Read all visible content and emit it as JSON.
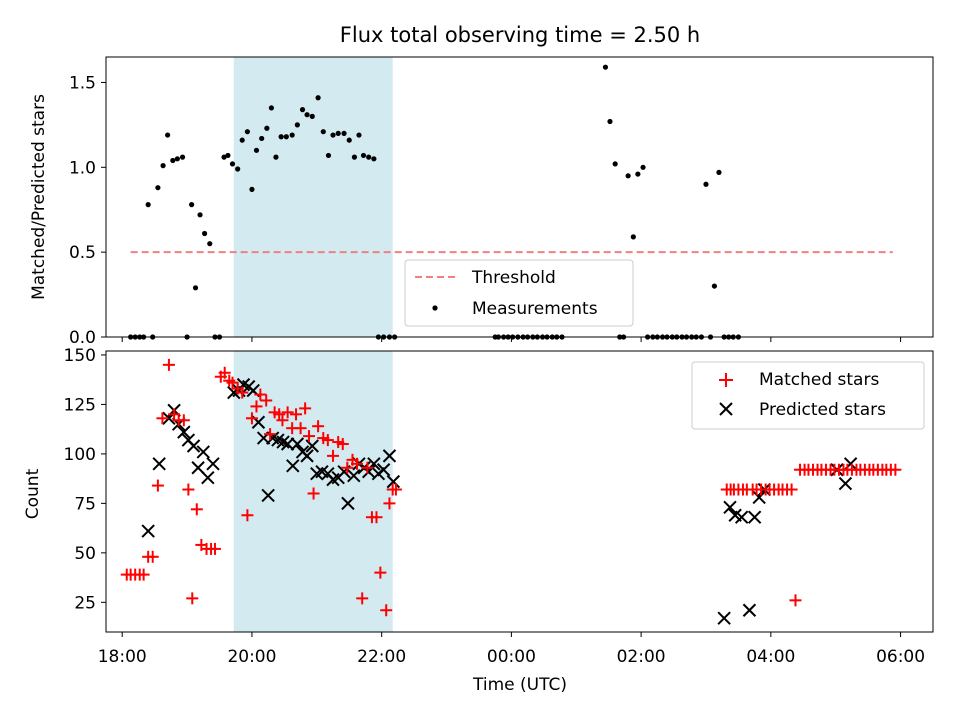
{
  "chart_data": [
    {
      "type": "scatter",
      "title": "Flux total observing time = 2.50 h",
      "xlabel": "",
      "ylabel": "Matched/Predicted stars",
      "ylim": [
        0,
        1.65
      ],
      "yticks": [
        0.0,
        0.5,
        1.0,
        1.5
      ],
      "ytick_labels": [
        "0.0",
        "0.5",
        "1.0",
        "1.5"
      ],
      "xlim_hours": [
        17.75,
        30.5
      ],
      "shaded_interval_hours": [
        19.72,
        22.17
      ],
      "shaded_color": "#d3eaf1",
      "threshold": {
        "name": "Threshold",
        "value": 0.5,
        "x_range_hours": [
          18.13,
          29.88
        ],
        "color": "#f08080",
        "style": "dashed"
      },
      "legend": {
        "position": "lower-center",
        "entries": [
          "Threshold",
          "Measurements"
        ]
      },
      "series": [
        {
          "name": "Measurements",
          "color": "#000000",
          "marker": "dot",
          "x_hours": [
            18.13,
            18.2,
            18.27,
            18.33,
            18.4,
            18.47,
            18.55,
            18.63,
            18.7,
            18.78,
            18.85,
            18.93,
            19.0,
            19.07,
            19.13,
            19.2,
            19.27,
            19.35,
            19.43,
            19.5,
            19.57,
            19.63,
            19.7,
            19.78,
            19.85,
            19.93,
            20.0,
            20.07,
            20.15,
            20.23,
            20.3,
            20.37,
            20.45,
            20.53,
            20.62,
            20.7,
            20.78,
            20.85,
            20.93,
            21.02,
            21.1,
            21.18,
            21.25,
            21.33,
            21.42,
            21.5,
            21.58,
            21.65,
            21.72,
            21.8,
            21.88,
            21.95,
            22.03,
            22.12,
            22.2,
            23.75,
            23.8,
            23.88,
            23.95,
            24.02,
            24.1,
            24.18,
            24.25,
            24.33,
            24.4,
            24.48,
            24.55,
            24.63,
            24.7,
            24.78,
            25.45,
            25.52,
            25.6,
            25.67,
            25.73,
            25.8,
            25.88,
            25.95,
            26.03,
            26.1,
            26.18,
            26.25,
            26.33,
            26.4,
            26.48,
            26.55,
            26.63,
            26.7,
            26.78,
            26.85,
            26.93,
            27.0,
            27.07,
            27.13,
            27.2,
            27.28,
            27.35,
            27.42,
            27.5
          ],
          "y": [
            0.0,
            0.0,
            0.0,
            0.0,
            0.78,
            0.0,
            0.88,
            1.01,
            1.19,
            1.04,
            1.05,
            1.06,
            0.0,
            0.78,
            0.29,
            0.72,
            0.61,
            0.55,
            0.0,
            0.0,
            1.06,
            1.07,
            1.02,
            0.99,
            1.16,
            1.21,
            0.87,
            1.1,
            1.17,
            1.23,
            1.35,
            1.06,
            1.18,
            1.18,
            1.19,
            1.25,
            1.34,
            1.31,
            1.3,
            1.41,
            1.21,
            1.07,
            1.19,
            1.2,
            1.2,
            1.16,
            1.06,
            1.19,
            1.07,
            1.06,
            1.05,
            0.0,
            0.0,
            0.0,
            0.0,
            0.0,
            0.0,
            0.0,
            0.0,
            0.0,
            0.0,
            0.0,
            0.0,
            0.0,
            0.0,
            0.0,
            0.0,
            0.0,
            0.0,
            0.0,
            1.59,
            1.27,
            1.02,
            0.0,
            0.0,
            0.95,
            0.59,
            0.96,
            1.0,
            0.0,
            0.0,
            0.0,
            0.0,
            0.0,
            0.0,
            0.0,
            0.0,
            0.0,
            0.0,
            0.0,
            0.0,
            0.9,
            0.0,
            0.3,
            0.97,
            0.0,
            0.0,
            0.0,
            0.0
          ]
        }
      ]
    },
    {
      "type": "scatter",
      "title": "",
      "xlabel": "Time (UTC)",
      "ylabel": "Count",
      "ylim": [
        10,
        152
      ],
      "yticks": [
        25,
        50,
        75,
        100,
        125,
        150
      ],
      "ytick_labels": [
        "25",
        "50",
        "75",
        "100",
        "125",
        "150"
      ],
      "xlim_hours": [
        17.75,
        30.5
      ],
      "xticks_hours": [
        18,
        20,
        22,
        24,
        26,
        28,
        30
      ],
      "xtick_labels": [
        "18:00",
        "20:00",
        "22:00",
        "00:00",
        "02:00",
        "04:00",
        "06:00"
      ],
      "shaded_interval_hours": [
        19.72,
        22.17
      ],
      "shaded_color": "#d3eaf1",
      "legend": {
        "position": "upper-right",
        "entries": [
          "Matched stars",
          "Predicted stars"
        ]
      },
      "series": [
        {
          "name": "Matched stars",
          "color": "#ff0000",
          "marker": "plus",
          "x_hours": [
            18.1,
            18.17,
            18.23,
            18.3,
            18.37,
            18.43,
            18.5,
            18.57,
            18.63,
            18.7,
            18.77,
            18.83,
            18.9,
            18.97,
            19.03,
            19.1,
            19.17,
            19.25,
            19.33,
            19.4,
            19.48,
            19.55,
            19.62,
            19.7,
            19.77,
            19.83,
            19.9,
            19.97,
            20.03,
            20.1,
            20.17,
            20.23,
            20.3,
            20.37,
            20.43,
            20.5,
            20.57,
            20.63,
            20.7,
            20.77,
            20.83,
            20.9,
            20.97,
            21.03,
            21.1,
            21.17,
            21.23,
            21.3,
            21.37,
            21.43,
            21.5,
            21.57,
            21.63,
            21.7,
            21.77,
            21.83,
            21.9,
            21.97,
            22.03,
            22.1,
            22.17,
            22.23,
            27.3,
            27.37,
            27.43,
            27.5,
            27.57,
            27.63,
            27.7,
            27.77,
            27.83,
            27.9,
            27.97,
            28.03,
            28.1,
            28.17,
            28.23,
            28.3,
            28.37,
            28.43,
            28.5,
            28.57,
            28.63,
            28.7,
            28.77,
            28.83,
            28.9,
            28.97,
            29.03,
            29.1,
            29.17,
            29.23,
            29.3,
            29.37,
            29.43,
            29.5,
            29.57,
            29.63,
            29.7,
            29.77,
            29.83,
            29.9
          ],
          "y": [
            39,
            39,
            39,
            39,
            39,
            48,
            48,
            84,
            115,
            145,
            118,
            117,
            117,
            82,
            27,
            72,
            54,
            52,
            52,
            52,
            139,
            141,
            137,
            136,
            133,
            131,
            69,
            118,
            124,
            130,
            127,
            110,
            121,
            120,
            117,
            121,
            113,
            120,
            113,
            123,
            109,
            80,
            114,
            108,
            107,
            99,
            106,
            105,
            93,
            97,
            95,
            96,
            27,
            93,
            68,
            68,
            40,
            21,
            75,
            82,
            82,
            82,
            82,
            82,
            82,
            82,
            82,
            82,
            82,
            82,
            82,
            82,
            82,
            82,
            82,
            82,
            82,
            26,
            92,
            92,
            92,
            92,
            92,
            92,
            92,
            92,
            92,
            92,
            92,
            92,
            92,
            92,
            92,
            92,
            92,
            92,
            92,
            92,
            92,
            92,
            92,
            92
          ],
          "render_x_hours": [
            18.07,
            18.13,
            18.2,
            18.27,
            18.33,
            18.4,
            18.47,
            18.55,
            18.62,
            18.72,
            18.8,
            18.87,
            18.95,
            19.02,
            19.08,
            19.15,
            19.22,
            19.3,
            19.37,
            19.43,
            19.52,
            19.58,
            19.65,
            19.7,
            19.78,
            19.85,
            19.93,
            20.0,
            20.07,
            20.13,
            20.22,
            20.28,
            20.35,
            20.42,
            20.47,
            20.55,
            20.62,
            20.68,
            20.75,
            20.82,
            20.88,
            20.95,
            21.02,
            21.1,
            21.17,
            21.25,
            21.33,
            21.4,
            21.47,
            21.55,
            21.62,
            21.7,
            21.78,
            21.85,
            21.92,
            21.98,
            22.07,
            22.12,
            22.17,
            22.22,
            27.32,
            27.38,
            27.43,
            27.5,
            27.57,
            27.63,
            27.72,
            27.78,
            27.85,
            27.92,
            27.98,
            28.05,
            28.12,
            28.18,
            28.25,
            28.32,
            28.38,
            28.45,
            28.52,
            28.58,
            28.65,
            28.72,
            28.78,
            28.85,
            28.92,
            28.98,
            29.05,
            29.12,
            29.18,
            29.25,
            29.32,
            29.38,
            29.45,
            29.52,
            29.58,
            29.65,
            29.72,
            29.78,
            29.85,
            29.92
          ],
          "render_y": [
            39,
            39,
            39,
            39,
            39,
            48,
            48,
            84,
            118,
            145,
            120,
            117,
            117,
            82,
            27,
            72,
            54,
            52,
            52,
            52,
            139,
            141,
            137,
            136,
            133,
            131,
            69,
            118,
            124,
            130,
            127,
            110,
            121,
            120,
            117,
            121,
            113,
            120,
            113,
            123,
            109,
            80,
            114,
            108,
            107,
            99,
            106,
            105,
            93,
            97,
            95,
            27,
            93,
            68,
            68,
            40,
            21,
            75,
            82,
            82,
            82,
            82,
            82,
            82,
            82,
            82,
            82,
            82,
            82,
            82,
            82,
            82,
            82,
            82,
            82,
            82,
            26,
            92,
            92,
            92,
            92,
            92,
            92,
            92,
            92,
            92,
            92,
            92,
            92,
            92,
            92,
            92,
            92,
            92,
            92,
            92,
            92,
            92,
            92,
            92
          ]
        },
        {
          "name": "Predicted stars",
          "color": "#000000",
          "marker": "x",
          "x_hours": [
            18.4,
            18.57,
            18.72,
            18.8,
            18.87,
            18.95,
            19.02,
            19.1,
            19.17,
            19.25,
            19.32,
            19.4,
            19.72,
            19.8,
            19.87,
            19.95,
            20.02,
            20.1,
            20.18,
            20.25,
            20.32,
            20.4,
            20.48,
            20.55,
            20.63,
            20.7,
            20.78,
            20.85,
            20.93,
            21.0,
            21.08,
            21.17,
            21.25,
            21.33,
            21.42,
            21.48,
            21.57,
            21.65,
            21.73,
            21.8,
            21.88,
            21.95,
            22.03,
            22.12,
            22.18,
            27.28,
            27.37,
            27.45,
            27.55,
            27.67,
            27.75,
            27.82,
            27.9,
            29.02,
            29.15,
            29.23
          ],
          "y": [
            61,
            95,
            118,
            122,
            115,
            111,
            107,
            104,
            93,
            101,
            88,
            95,
            131,
            132,
            135,
            134,
            132,
            116,
            108,
            79,
            108,
            107,
            106,
            105,
            94,
            105,
            101,
            99,
            104,
            90,
            91,
            90,
            87,
            88,
            91,
            75,
            89,
            95,
            93,
            91,
            95,
            90,
            92,
            99,
            86,
            17,
            73,
            69,
            68,
            21,
            68,
            78,
            82,
            92,
            85,
            95
          ]
        }
      ]
    }
  ]
}
